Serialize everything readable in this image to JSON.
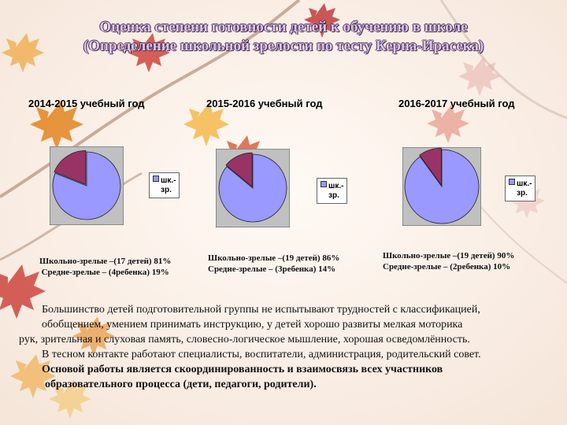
{
  "title": {
    "line1": "Оценка степени готовности детей к обучению в школе",
    "line2": "(Определение школьной зрелости  по тесту  Керна-Ирасека)"
  },
  "colors": {
    "ready": "#9999ff",
    "medium": "#993366",
    "plot_bg": "#c0c0c0"
  },
  "chart_data": [
    {
      "type": "pie",
      "title": "2014-2015 учебный год",
      "slices": [
        {
          "label": "шк.-зр.",
          "value": 81
        },
        {
          "label": "",
          "value": 19
        }
      ],
      "legend": [
        "шк.-",
        "зр."
      ],
      "stats": [
        "Школьно-зрелые –(17 детей) 81%",
        "Средне-зрелые – (4ребенка) 19%"
      ]
    },
    {
      "type": "pie",
      "title": "2015-2016 учебный год",
      "slices": [
        {
          "label": "шк.-зр.",
          "value": 86
        },
        {
          "label": "",
          "value": 14
        }
      ],
      "legend": [
        "шк.-",
        "зр."
      ],
      "stats": [
        "Школьно-зрелые –(19 детей) 86%",
        "Средне-зрелые – (3ребенка) 14%"
      ]
    },
    {
      "type": "pie",
      "title": "2016-2017 учебный год",
      "slices": [
        {
          "label": "шк.-зр.",
          "value": 90
        },
        {
          "label": "",
          "value": 10
        }
      ],
      "legend": [
        "шк.-",
        "зр."
      ],
      "stats": [
        "Школьно-зрелые –(19 детей) 90%",
        "Средне-зрелые – (2ребенка) 10%"
      ]
    }
  ],
  "paragraph": {
    "line1": "Большинство детей подготовительной группы не испытывают трудностей  с классификацией,",
    "line2": "обобщением, умением принимать инструкцию, у детей хорошо развиты мелкая моторика",
    "line3": "рук, зрительная и   слуховая память, словесно-логическое мышление, хорошая осведомлённость.",
    "line4": "В тесном контакте работают специалисты, воспитатели, администрация, родительский совет.",
    "line5": "Основой работы является скоординированность и взаимосвязь всех участников",
    "line6": "образовательного процесса (дети, педагоги, родители)."
  }
}
